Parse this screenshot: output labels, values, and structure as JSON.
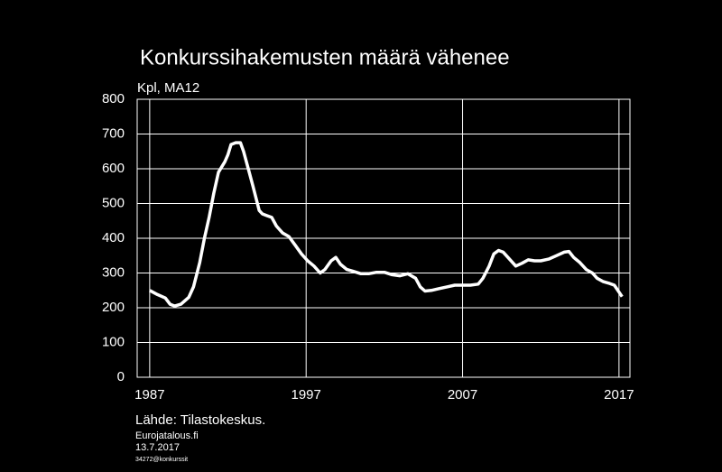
{
  "chart_data": {
    "type": "line",
    "title": "Konkurssihakemusten  määrä vähenee",
    "y_label": "Kpl, MA12",
    "source": "Lähde:  Tilastokeskus.",
    "site": "Eurojatalous.fi",
    "date": "13.7.2017",
    "code": "34272@konkurssit",
    "color": "#ffffff",
    "grid": true,
    "xlim": [
      1986.2,
      2017.7
    ],
    "xticks": [
      1987,
      1997,
      2007,
      2017
    ],
    "ylim": [
      0,
      800
    ],
    "yticks": [
      0,
      100,
      200,
      300,
      400,
      500,
      600,
      700,
      800
    ],
    "x": [
      1987.0,
      1987.5,
      1988.0,
      1988.3,
      1988.6,
      1989.0,
      1989.5,
      1989.8,
      1990.2,
      1990.5,
      1990.8,
      1991.1,
      1991.4,
      1991.8,
      1992.0,
      1992.2,
      1992.5,
      1992.8,
      1993.0,
      1993.3,
      1993.6,
      1994.0,
      1994.2,
      1994.5,
      1994.8,
      1995.1,
      1995.5,
      1995.9,
      1996.3,
      1996.7,
      1997.1,
      1997.5,
      1997.9,
      1998.2,
      1998.6,
      1998.9,
      1999.2,
      1999.6,
      2000.0,
      2000.5,
      2001.0,
      2001.5,
      2002.0,
      2002.5,
      2003.0,
      2003.5,
      2004.0,
      2004.3,
      2004.6,
      2005.0,
      2005.5,
      2006.0,
      2006.5,
      2007.0,
      2007.5,
      2008.0,
      2008.3,
      2008.7,
      2009.0,
      2009.3,
      2009.6,
      2010.0,
      2010.4,
      2010.8,
      2011.2,
      2011.6,
      2012.0,
      2012.5,
      2013.0,
      2013.5,
      2013.8,
      2014.1,
      2014.5,
      2014.9,
      2015.3,
      2015.6,
      2016.0,
      2016.4,
      2016.7,
      2017.0,
      2017.2
    ],
    "values": [
      250,
      238,
      228,
      210,
      205,
      210,
      230,
      260,
      330,
      400,
      460,
      530,
      590,
      620,
      640,
      670,
      675,
      675,
      650,
      600,
      550,
      480,
      470,
      465,
      460,
      435,
      415,
      405,
      380,
      355,
      335,
      320,
      300,
      310,
      335,
      345,
      325,
      310,
      305,
      298,
      298,
      302,
      302,
      295,
      292,
      298,
      285,
      260,
      248,
      250,
      255,
      260,
      265,
      265,
      265,
      268,
      285,
      320,
      355,
      365,
      360,
      340,
      320,
      328,
      338,
      335,
      335,
      340,
      350,
      360,
      362,
      345,
      330,
      310,
      300,
      285,
      275,
      270,
      265,
      245,
      232
    ]
  }
}
